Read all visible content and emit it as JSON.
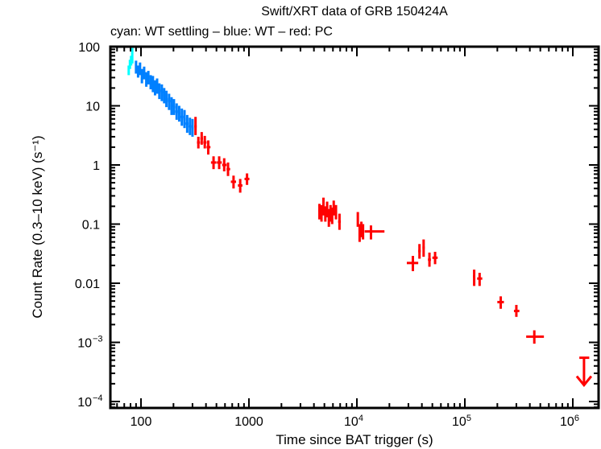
{
  "chart_data": {
    "type": "scatter",
    "title": "Swift/XRT data of GRB 150424A",
    "subtitle": "cyan: WT settling – blue: WT – red: PC",
    "xlabel": "Time since BAT trigger (s)",
    "ylabel": "Count Rate (0.3–10 keV) (s⁻¹)",
    "xscale": "log",
    "yscale": "log",
    "xlim": [
      55,
      1700000
    ],
    "ylim": [
      8e-05,
      100
    ],
    "grid": false,
    "x_tick_labels": [
      {
        "value": 100,
        "label": "100"
      },
      {
        "value": 1000,
        "label": "1000"
      },
      {
        "value": 10000,
        "label": "10",
        "sup": "4"
      },
      {
        "value": 100000,
        "label": "10",
        "sup": "5"
      },
      {
        "value": 1000000,
        "label": "10",
        "sup": "6"
      }
    ],
    "y_tick_labels": [
      {
        "value": 100,
        "label": "100"
      },
      {
        "value": 10,
        "label": "10"
      },
      {
        "value": 1,
        "label": "1"
      },
      {
        "value": 0.1,
        "label": "0.1"
      },
      {
        "value": 0.01,
        "label": "0.01"
      },
      {
        "value": 0.001,
        "label": "10",
        "sup": "−3"
      },
      {
        "value": 0.0001,
        "label": "10",
        "sup": "−4"
      }
    ],
    "series": [
      {
        "name": "WT settling",
        "color": "#00ffff",
        "points": [
          {
            "t": 77,
            "tlo": 76,
            "thi": 78,
            "r": 40,
            "rlo": 33,
            "rhi": 48
          },
          {
            "t": 79,
            "tlo": 78,
            "thi": 80,
            "r": 50,
            "rlo": 42,
            "rhi": 60
          },
          {
            "t": 81,
            "tlo": 80,
            "thi": 82,
            "r": 58,
            "rlo": 48,
            "rhi": 70
          },
          {
            "t": 83,
            "tlo": 82,
            "thi": 84,
            "r": 65,
            "rlo": 52,
            "rhi": 95
          }
        ]
      },
      {
        "name": "WT",
        "color": "#0080ff",
        "points": [
          {
            "t": 90,
            "tlo": 88,
            "thi": 92,
            "r": 45,
            "rlo": 35,
            "rhi": 58
          },
          {
            "t": 94,
            "tlo": 92,
            "thi": 96,
            "r": 38,
            "rlo": 30,
            "rhi": 48
          },
          {
            "t": 98,
            "tlo": 96,
            "thi": 100,
            "r": 42,
            "rlo": 33,
            "rhi": 54
          },
          {
            "t": 102,
            "tlo": 100,
            "thi": 104,
            "r": 32,
            "rlo": 24,
            "rhi": 42
          },
          {
            "t": 107,
            "tlo": 104,
            "thi": 110,
            "r": 36,
            "rlo": 28,
            "rhi": 46
          },
          {
            "t": 112,
            "tlo": 110,
            "thi": 115,
            "r": 28,
            "rlo": 21,
            "rhi": 37
          },
          {
            "t": 117,
            "tlo": 115,
            "thi": 120,
            "r": 30,
            "rlo": 23,
            "rhi": 39
          },
          {
            "t": 123,
            "tlo": 120,
            "thi": 126,
            "r": 25,
            "rlo": 19,
            "rhi": 33
          },
          {
            "t": 129,
            "tlo": 126,
            "thi": 132,
            "r": 24,
            "rlo": 17,
            "rhi": 32
          },
          {
            "t": 135,
            "tlo": 132,
            "thi": 138,
            "r": 20,
            "rlo": 15,
            "rhi": 27
          },
          {
            "t": 141,
            "tlo": 138,
            "thi": 145,
            "r": 22,
            "rlo": 16,
            "rhi": 29
          },
          {
            "t": 148,
            "tlo": 145,
            "thi": 152,
            "r": 18,
            "rlo": 13,
            "rhi": 24
          },
          {
            "t": 156,
            "tlo": 152,
            "thi": 160,
            "r": 17,
            "rlo": 12,
            "rhi": 23
          },
          {
            "t": 164,
            "tlo": 160,
            "thi": 168,
            "r": 15,
            "rlo": 11,
            "rhi": 20
          },
          {
            "t": 172,
            "tlo": 168,
            "thi": 177,
            "r": 13,
            "rlo": 9.5,
            "rhi": 18
          },
          {
            "t": 182,
            "tlo": 177,
            "thi": 187,
            "r": 12,
            "rlo": 8.5,
            "rhi": 16
          },
          {
            "t": 192,
            "tlo": 187,
            "thi": 197,
            "r": 10,
            "rlo": 7,
            "rhi": 14
          },
          {
            "t": 202,
            "tlo": 197,
            "thi": 208,
            "r": 9.5,
            "rlo": 7,
            "rhi": 13
          },
          {
            "t": 214,
            "tlo": 208,
            "thi": 220,
            "r": 8,
            "rlo": 5.8,
            "rhi": 11
          },
          {
            "t": 226,
            "tlo": 220,
            "thi": 232,
            "r": 7.5,
            "rlo": 5.4,
            "rhi": 10
          },
          {
            "t": 239,
            "tlo": 232,
            "thi": 246,
            "r": 6.5,
            "rlo": 4.6,
            "rhi": 9
          },
          {
            "t": 253,
            "tlo": 246,
            "thi": 260,
            "r": 6,
            "rlo": 4.2,
            "rhi": 8.5
          },
          {
            "t": 268,
            "tlo": 260,
            "thi": 276,
            "r": 5,
            "rlo": 3.5,
            "rhi": 7
          },
          {
            "t": 284,
            "tlo": 276,
            "thi": 292,
            "r": 4.5,
            "rlo": 3.2,
            "rhi": 6.3
          },
          {
            "t": 300,
            "tlo": 292,
            "thi": 308,
            "r": 4.2,
            "rlo": 3.0,
            "rhi": 6.0
          }
        ]
      },
      {
        "name": "PC",
        "color": "#ff0000",
        "points": [
          {
            "t": 320,
            "tlo": 312,
            "thi": 328,
            "r": 4.5,
            "rlo": 3.2,
            "rhi": 6.5
          },
          {
            "t": 340,
            "tlo": 330,
            "thi": 352,
            "r": 2.4,
            "rlo": 1.9,
            "rhi": 3.0
          },
          {
            "t": 365,
            "tlo": 355,
            "thi": 375,
            "r": 2.8,
            "rlo": 2.2,
            "rhi": 3.6
          },
          {
            "t": 390,
            "tlo": 378,
            "thi": 405,
            "r": 2.4,
            "rlo": 1.9,
            "rhi": 3.1
          },
          {
            "t": 420,
            "tlo": 405,
            "thi": 440,
            "r": 2.0,
            "rlo": 1.5,
            "rhi": 2.6
          },
          {
            "t": 470,
            "tlo": 445,
            "thi": 500,
            "r": 1.1,
            "rlo": 0.85,
            "rhi": 1.4
          },
          {
            "t": 530,
            "tlo": 505,
            "thi": 560,
            "r": 1.1,
            "rlo": 0.85,
            "rhi": 1.4
          },
          {
            "t": 590,
            "tlo": 565,
            "thi": 620,
            "r": 1.0,
            "rlo": 0.78,
            "rhi": 1.3
          },
          {
            "t": 640,
            "tlo": 620,
            "thi": 670,
            "r": 0.85,
            "rlo": 0.65,
            "rhi": 1.1
          },
          {
            "t": 720,
            "tlo": 680,
            "thi": 760,
            "r": 0.52,
            "rlo": 0.4,
            "rhi": 0.66
          },
          {
            "t": 830,
            "tlo": 790,
            "thi": 870,
            "r": 0.45,
            "rlo": 0.34,
            "rhi": 0.58
          },
          {
            "t": 960,
            "tlo": 910,
            "thi": 1010,
            "r": 0.58,
            "rlo": 0.46,
            "rhi": 0.72
          },
          {
            "t": 4500,
            "tlo": 4400,
            "thi": 4600,
            "r": 0.17,
            "rlo": 0.12,
            "rhi": 0.22
          },
          {
            "t": 4700,
            "tlo": 4600,
            "thi": 4800,
            "r": 0.16,
            "rlo": 0.11,
            "rhi": 0.21
          },
          {
            "t": 4900,
            "tlo": 4800,
            "thi": 5000,
            "r": 0.2,
            "rlo": 0.14,
            "rhi": 0.28
          },
          {
            "t": 5100,
            "tlo": 5000,
            "thi": 5200,
            "r": 0.15,
            "rlo": 0.11,
            "rhi": 0.2
          },
          {
            "t": 5300,
            "tlo": 5200,
            "thi": 5400,
            "r": 0.18,
            "rlo": 0.13,
            "rhi": 0.24
          },
          {
            "t": 5500,
            "tlo": 5400,
            "thi": 5600,
            "r": 0.13,
            "rlo": 0.09,
            "rhi": 0.18
          },
          {
            "t": 5700,
            "tlo": 5600,
            "thi": 5800,
            "r": 0.16,
            "rlo": 0.11,
            "rhi": 0.21
          },
          {
            "t": 5900,
            "tlo": 5800,
            "thi": 6000,
            "r": 0.14,
            "rlo": 0.1,
            "rhi": 0.19
          },
          {
            "t": 6100,
            "tlo": 6000,
            "thi": 6200,
            "r": 0.19,
            "rlo": 0.14,
            "rhi": 0.25
          },
          {
            "t": 6400,
            "tlo": 6250,
            "thi": 6550,
            "r": 0.16,
            "rlo": 0.12,
            "rhi": 0.21
          },
          {
            "t": 6900,
            "tlo": 6700,
            "thi": 7100,
            "r": 0.11,
            "rlo": 0.08,
            "rhi": 0.15
          },
          {
            "t": 10200,
            "tlo": 10000,
            "thi": 10400,
            "r": 0.12,
            "rlo": 0.09,
            "rhi": 0.16
          },
          {
            "t": 10600,
            "tlo": 10400,
            "thi": 10800,
            "r": 0.07,
            "rlo": 0.05,
            "rhi": 0.1
          },
          {
            "t": 11000,
            "tlo": 10800,
            "thi": 11200,
            "r": 0.08,
            "rlo": 0.06,
            "rhi": 0.11
          },
          {
            "t": 11400,
            "tlo": 11200,
            "thi": 11600,
            "r": 0.075,
            "rlo": 0.055,
            "rhi": 0.1
          },
          {
            "t": 13500,
            "tlo": 11800,
            "thi": 18000,
            "r": 0.075,
            "rlo": 0.055,
            "rhi": 0.095
          },
          {
            "t": 33000,
            "tlo": 29000,
            "thi": 37000,
            "r": 0.022,
            "rlo": 0.016,
            "rhi": 0.029
          },
          {
            "t": 38000,
            "tlo": 37000,
            "thi": 39000,
            "r": 0.035,
            "rlo": 0.026,
            "rhi": 0.046
          },
          {
            "t": 41500,
            "tlo": 40500,
            "thi": 42500,
            "r": 0.04,
            "rlo": 0.028,
            "rhi": 0.055
          },
          {
            "t": 47000,
            "tlo": 45500,
            "thi": 48500,
            "r": 0.025,
            "rlo": 0.019,
            "rhi": 0.033
          },
          {
            "t": 53000,
            "tlo": 50000,
            "thi": 56000,
            "r": 0.027,
            "rlo": 0.021,
            "rhi": 0.034
          },
          {
            "t": 122000,
            "tlo": 119000,
            "thi": 125000,
            "r": 0.013,
            "rlo": 0.009,
            "rhi": 0.017
          },
          {
            "t": 137000,
            "tlo": 130000,
            "thi": 145000,
            "r": 0.012,
            "rlo": 0.009,
            "rhi": 0.015
          },
          {
            "t": 215000,
            "tlo": 200000,
            "thi": 230000,
            "r": 0.0048,
            "rlo": 0.0037,
            "rhi": 0.006
          },
          {
            "t": 300000,
            "tlo": 285000,
            "thi": 320000,
            "r": 0.0034,
            "rlo": 0.0027,
            "rhi": 0.0043
          },
          {
            "t": 440000,
            "tlo": 370000,
            "thi": 540000,
            "r": 0.00125,
            "rlo": 0.00095,
            "rhi": 0.0016
          }
        ],
        "upper_limits": [
          {
            "t": 1270000,
            "tlo": 1150000,
            "thi": 1420000,
            "r": 0.00055
          }
        ]
      }
    ]
  }
}
